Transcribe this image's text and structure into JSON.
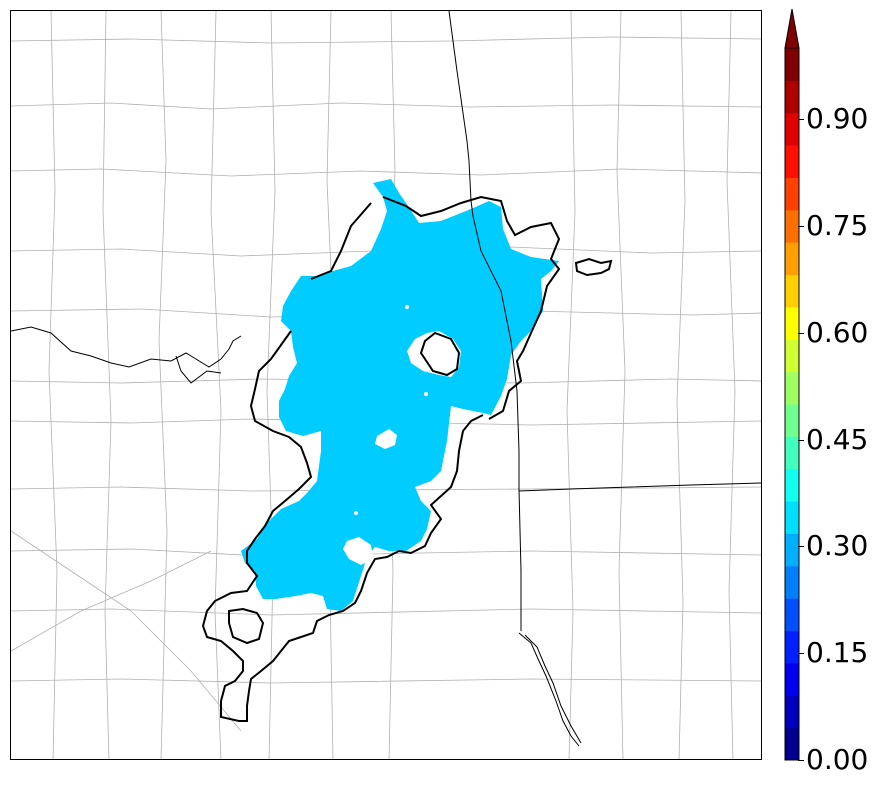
{
  "map": {
    "region": "probability-overlay-map",
    "fill_color": "#00ccff",
    "contour_color": "#000000",
    "county_line_color": "#aaaaaa",
    "state_line_color": "#000000"
  },
  "colorbar": {
    "min": 0.0,
    "max": 1.0,
    "extend": "max",
    "colors": [
      "#00008f",
      "#0000bf",
      "#0000ef",
      "#0020ff",
      "#0050ff",
      "#0080ff",
      "#00b0ff",
      "#00dfff",
      "#10ffef",
      "#40ffbf",
      "#70ff8f",
      "#9fff60",
      "#cfff30",
      "#ffff00",
      "#ffd000",
      "#ffa000",
      "#ff7000",
      "#ff4000",
      "#ff1000",
      "#df0000",
      "#af0000",
      "#800000"
    ],
    "ticks": [
      {
        "value": 0.0,
        "label": "0.00"
      },
      {
        "value": 0.15,
        "label": "0.15"
      },
      {
        "value": 0.3,
        "label": "0.30"
      },
      {
        "value": 0.45,
        "label": "0.45"
      },
      {
        "value": 0.6,
        "label": "0.60"
      },
      {
        "value": 0.75,
        "label": "0.75"
      },
      {
        "value": 0.9,
        "label": "0.90"
      }
    ]
  }
}
